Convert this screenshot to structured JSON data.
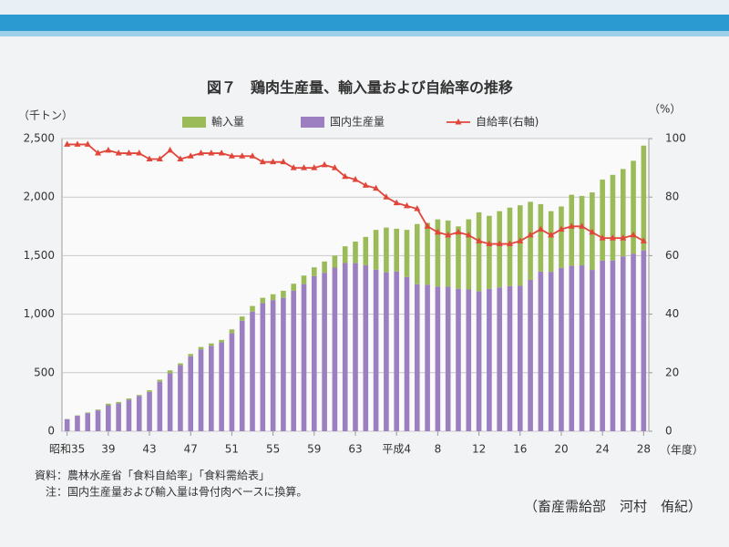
{
  "chart_data": {
    "type": "bar",
    "stacked": true,
    "title": "図７　鶏肉生産量、輸入量および自給率の推移",
    "y_label": "（千トン）",
    "y2_label": "（%）",
    "x_label": "（年度）",
    "categories": [
      "昭和35",
      null,
      null,
      null,
      "39",
      null,
      null,
      null,
      "43",
      null,
      null,
      null,
      "47",
      null,
      null,
      null,
      "51",
      null,
      null,
      null,
      "55",
      null,
      null,
      null,
      "59",
      null,
      null,
      null,
      "63",
      null,
      null,
      null,
      "平成4",
      null,
      null,
      null,
      "8",
      null,
      null,
      null,
      "12",
      null,
      null,
      null,
      "16",
      null,
      null,
      null,
      "20",
      null,
      null,
      null,
      "24",
      null,
      null,
      null,
      "28"
    ],
    "series": [
      {
        "name": "輸入量",
        "color": "#9bbb59",
        "values": [
          2,
          3,
          5,
          7,
          13,
          12,
          10,
          8,
          14,
          17,
          24,
          16,
          20,
          20,
          20,
          21,
          32,
          36,
          48,
          45,
          50,
          60,
          60,
          73,
          75,
          96,
          102,
          143,
          184,
          243,
          340,
          382,
          365,
          402,
          514,
          528,
          574,
          566,
          534,
          599,
          675,
          624,
          651,
          671,
          688,
          667,
          576,
          518,
          525,
          607,
          593,
          662,
          693,
          731,
          746,
          793,
          895
        ]
      },
      {
        "name": "国内生産量",
        "color": "#9b7fc0",
        "values": [
          103,
          132,
          155,
          178,
          222,
          238,
          270,
          302,
          336,
          423,
          496,
          564,
          640,
          700,
          730,
          759,
          838,
          944,
          1022,
          1095,
          1120,
          1140,
          1200,
          1257,
          1325,
          1354,
          1398,
          1437,
          1436,
          1417,
          1380,
          1358,
          1365,
          1318,
          1256,
          1252,
          1236,
          1234,
          1216,
          1211,
          1195,
          1216,
          1229,
          1239,
          1242,
          1293,
          1364,
          1362,
          1395,
          1413,
          1417,
          1378,
          1457,
          1459,
          1494,
          1517,
          1545
        ]
      },
      {
        "name": "自給率(右軸)",
        "color": "#e0473a",
        "type": "line",
        "axis": "y2",
        "values": [
          98,
          98,
          98,
          95,
          96,
          95,
          95,
          95,
          93,
          93,
          96,
          93,
          94,
          95,
          95,
          95,
          94,
          94,
          94,
          92,
          92,
          92,
          90,
          90,
          90,
          91,
          90,
          87,
          86,
          84,
          83,
          80,
          78,
          77,
          76,
          70,
          68,
          67,
          68,
          67,
          65,
          64,
          64,
          64,
          65,
          67,
          69,
          67,
          69,
          70,
          70,
          68,
          66,
          66,
          66,
          67,
          65
        ]
      }
    ],
    "ylim": [
      0,
      2500
    ],
    "yticks": [
      0,
      500,
      {
        "value": 1000,
        "label": "1,000"
      },
      {
        "value": 1500,
        "label": "1,500"
      },
      {
        "value": 2000,
        "label": "2,000"
      },
      {
        "value": 2500,
        "label": "2,500"
      }
    ],
    "y2lim": [
      0,
      100
    ],
    "y2ticks": [
      0,
      20,
      40,
      60,
      80,
      100
    ],
    "grid": true,
    "legend": "top"
  },
  "notes": [
    "資料：農林水産省「食料自給率」「食料需給表」",
    "注：国内生産量および輸入量は骨付肉ベースに換算。"
  ],
  "byline": "（畜産需給部　河村　侑紀）"
}
